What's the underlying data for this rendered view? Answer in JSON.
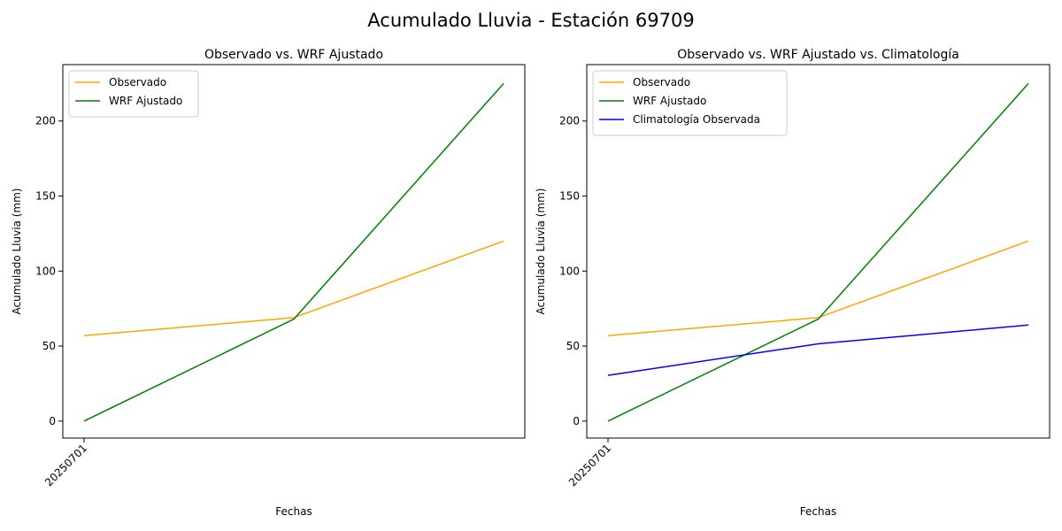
{
  "figure": {
    "title": "Acumulado Lluvia - Estación 69709"
  },
  "chart_data": [
    {
      "type": "line",
      "title": "Observado vs. WRF Ajustado",
      "xlabel": "Fechas",
      "ylabel": "Acumulado Lluvia (mm)",
      "x_tick_labels": [
        "20250701"
      ],
      "y_ticks": [
        0,
        50,
        100,
        150,
        200
      ],
      "ylim": [
        -11.3,
        237.6
      ],
      "legend_position": "upper left",
      "series": [
        {
          "name": "Observado",
          "color": "#ffa500",
          "values": [
            57,
            69,
            120
          ]
        },
        {
          "name": "WRF Ajustado",
          "color": "#008000",
          "values": [
            0,
            68,
            225
          ]
        }
      ]
    },
    {
      "type": "line",
      "title": "Observado vs. WRF Ajustado vs. Climatología",
      "xlabel": "Fechas",
      "ylabel": "Acumulado Lluvia (mm)",
      "x_tick_labels": [
        "20250701"
      ],
      "y_ticks": [
        0,
        50,
        100,
        150,
        200
      ],
      "ylim": [
        -11.3,
        237.6
      ],
      "legend_position": "upper left",
      "series": [
        {
          "name": "Observado",
          "color": "#ffa500",
          "values": [
            57,
            69,
            120
          ]
        },
        {
          "name": "WRF Ajustado",
          "color": "#008000",
          "values": [
            0,
            68,
            225
          ]
        },
        {
          "name": "Climatología Observada",
          "color": "#0000ff",
          "values": [
            30.5,
            51.5,
            64
          ]
        }
      ]
    }
  ]
}
